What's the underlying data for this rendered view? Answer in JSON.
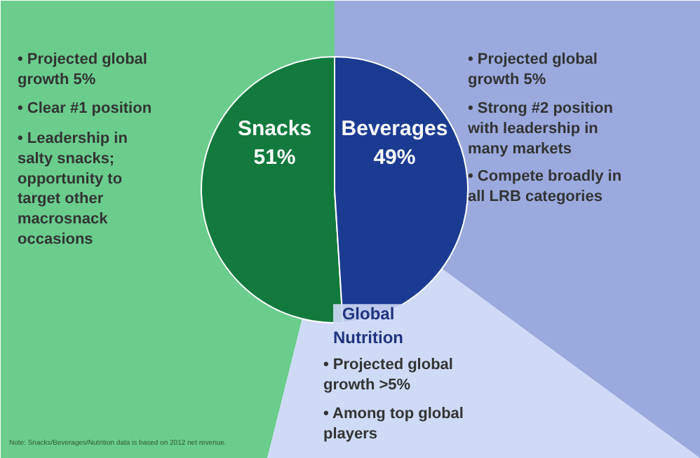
{
  "chart_data": {
    "type": "pie",
    "categories": [
      "Snacks",
      "Beverages"
    ],
    "values": [
      51,
      49
    ],
    "colors": [
      "#127a3c",
      "#1b3b93"
    ],
    "value_labels": [
      "51%",
      "49%"
    ],
    "annotations": [
      "• Projected global growth 5%",
      "• Clear #1 position",
      "• Leadership in salty snacks; opportunity to target other macrosnack occasions",
      "• Projected global growth 5%",
      "• Strong #2 position with leadership in many markets",
      "• Compete broadly in all LRB categories",
      "Global Nutrition",
      "• Projected global growth >5%",
      "• Among top global players",
      "Note: Snacks/Beverages/Nutrition data is based on 2012 net revenue."
    ]
  }
}
